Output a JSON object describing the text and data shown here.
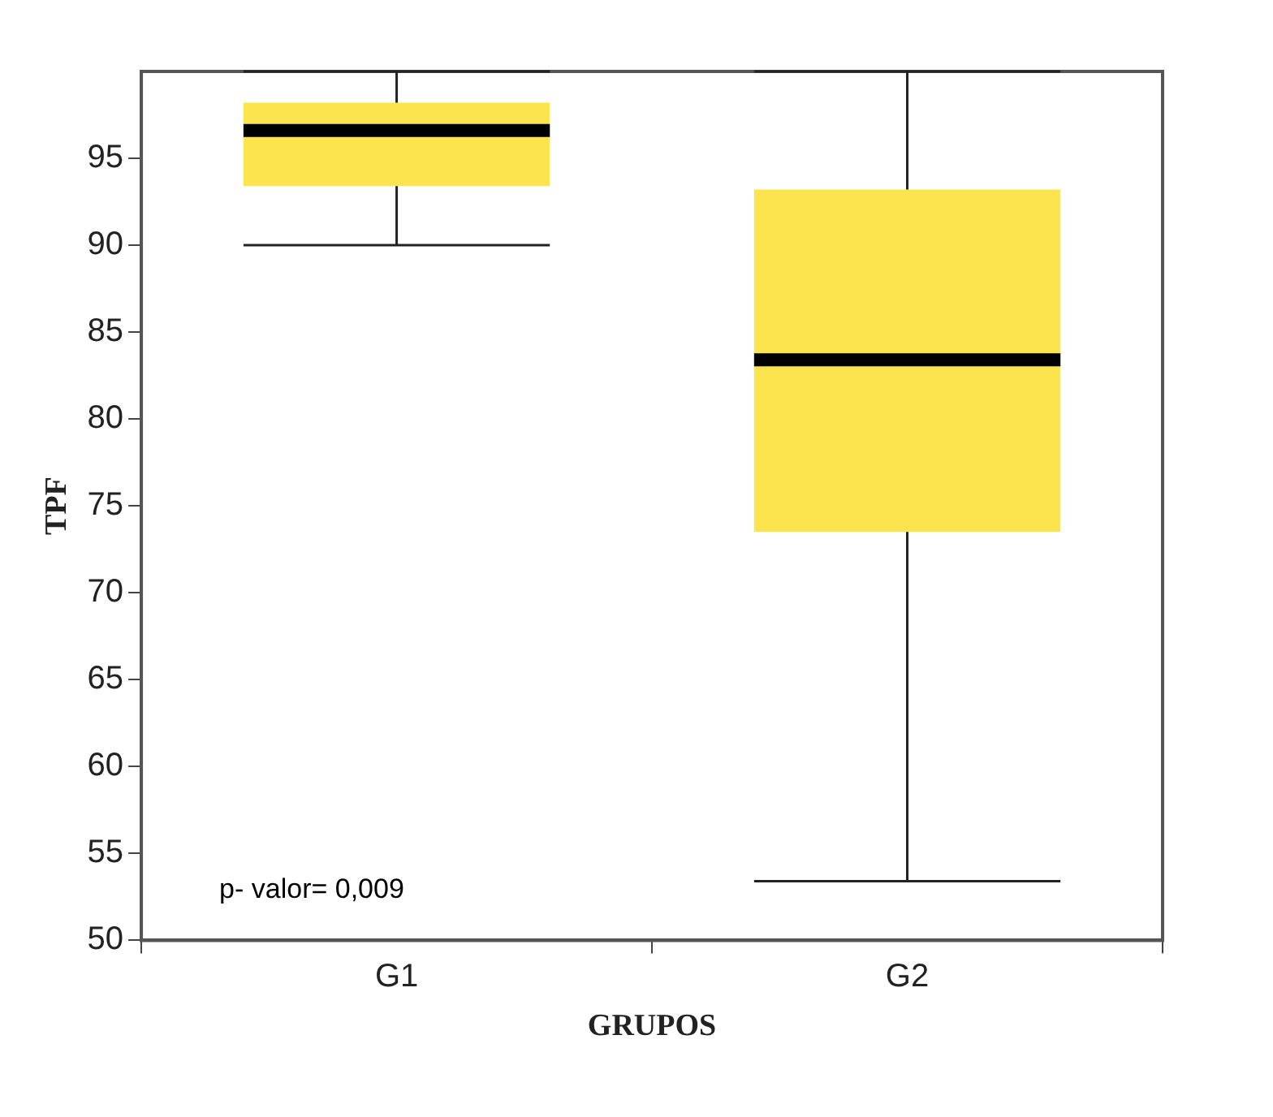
{
  "chart_data": {
    "type": "box",
    "xlabel": "GRUPOS",
    "ylabel": "TPF",
    "categories": [
      "G1",
      "G2"
    ],
    "color": "#fbe44e",
    "boxes": [
      {
        "low": 90,
        "q1": 93.4,
        "median": 96.6,
        "q3": 98.2,
        "high": 100
      },
      {
        "low": 53.4,
        "q1": 73.5,
        "median": 83.4,
        "q3": 93.2,
        "high": 100
      }
    ],
    "ylim": [
      50,
      100
    ],
    "yticks": [
      50,
      55,
      60,
      65,
      70,
      75,
      80,
      85,
      90,
      95
    ],
    "grid": false,
    "legend": false,
    "annotations": [
      "p- valor= 0,009"
    ]
  }
}
